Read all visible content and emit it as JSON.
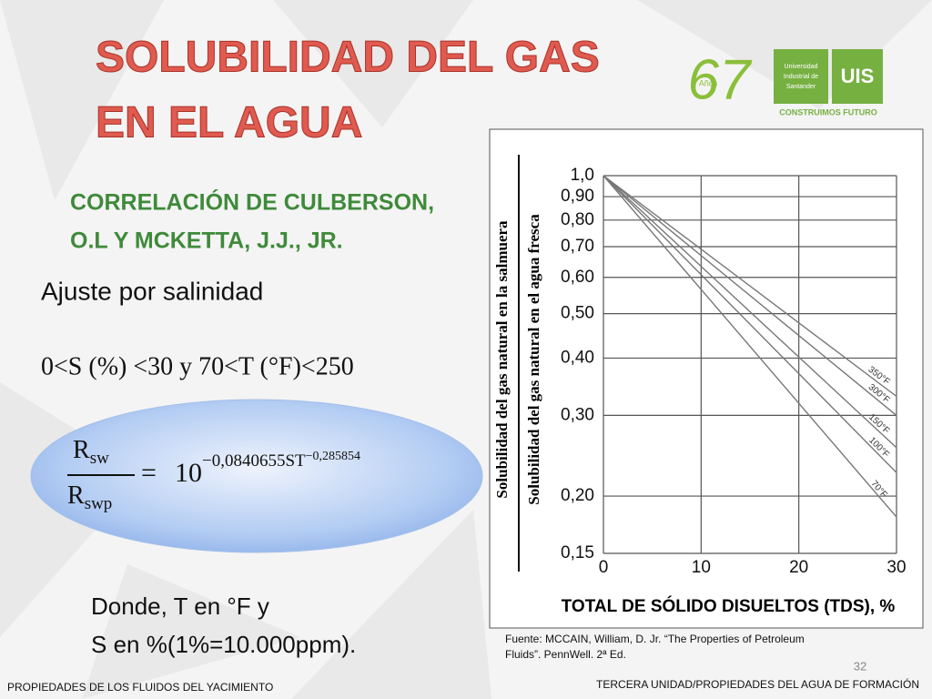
{
  "title": {
    "lines": [
      "SOLUBILIDAD DEL GAS",
      "EN EL AGUA"
    ]
  },
  "logo": {
    "anniversary": "67",
    "years": "Años",
    "university": [
      "Universidad",
      "Industrial de",
      "Santander"
    ],
    "acronym": "UIS",
    "slogan": "CONSTRUIMOS FUTURO"
  },
  "subtitle": {
    "lines": [
      "CORRELACIÓN DE CULBERSON,",
      "O.L Y MCKETTA, J.J., JR."
    ]
  },
  "heading": "Ajuste por salinidad",
  "range": "0<S (%) <30  y 70<T (°F)<250",
  "formula": {
    "numerator": "R",
    "numerator_sub": "sw",
    "denominator": "R",
    "denominator_sub": "swp",
    "equals": "=",
    "base": "10",
    "exponent": "−0,0840655ST",
    "exponent_sup": "−0,285854"
  },
  "notes": [
    "Donde, T en °F y",
    "S en %(1%=10.000ppm)."
  ],
  "chart_data": {
    "type": "line",
    "y_label": [
      "Solubilidad del gas natural en la salmuera",
      "Solubilidad del gas natural en el agua fresca"
    ],
    "x_label": "TOTAL DE SÓLIDO DISUELTOS (TDS), %",
    "x": [
      0,
      30
    ],
    "series": [
      {
        "name": "350°F",
        "color": "#777777",
        "values": [
          1.0,
          0.33
        ]
      },
      {
        "name": "300°F",
        "color": "#777777",
        "values": [
          1.0,
          0.3
        ]
      },
      {
        "name": "150°F",
        "color": "#777777",
        "values": [
          1.0,
          0.255
        ]
      },
      {
        "name": "100°F",
        "color": "#777777",
        "values": [
          1.0,
          0.225
        ]
      },
      {
        "name": "70°F",
        "color": "#777777",
        "values": [
          1.0,
          0.18
        ]
      }
    ],
    "xlim": [
      0,
      30
    ],
    "xticks": [
      0,
      10,
      20,
      30
    ],
    "ylim": [
      0.15,
      1.0
    ],
    "log_y": true,
    "yticks": [
      {
        "value": 1.0,
        "label": "1,0"
      },
      {
        "value": 0.9,
        "label": "0,90"
      },
      {
        "value": 0.8,
        "label": "0,80"
      },
      {
        "value": 0.7,
        "label": "0,70"
      },
      {
        "value": 0.6,
        "label": "0,60"
      },
      {
        "value": 0.5,
        "label": "0,50"
      },
      {
        "value": 0.4,
        "label": "0,40"
      },
      {
        "value": 0.3,
        "label": "0,30"
      },
      {
        "value": 0.2,
        "label": "0,20"
      },
      {
        "value": 0.15,
        "label": "0,15"
      }
    ],
    "grid": true
  },
  "source": [
    "Fuente: MCCAIN, William, D. Jr. “The Properties of Petroleum",
    "Fluids”. PennWell. 2ª Ed."
  ],
  "page_number": "32",
  "footer": {
    "left": "PROPIEDADES DE LOS FLUIDOS DEL YACIMIENTO",
    "right": "TERCERA UNIDAD/PROPIEDADES DEL AGUA DE FORMACIÓN"
  }
}
